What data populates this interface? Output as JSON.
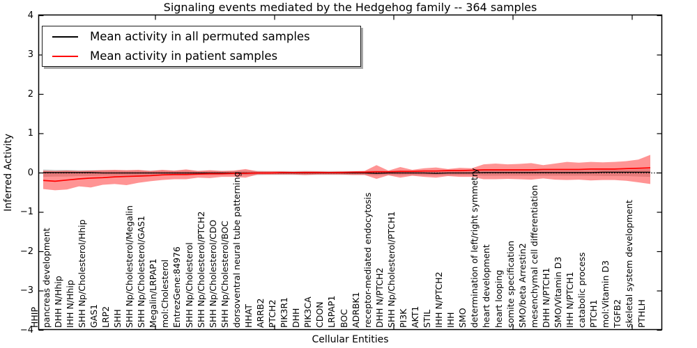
{
  "chart_data": {
    "type": "line",
    "title": "Signaling events mediated by the Hedgehog family -- 364 samples",
    "xlabel": "Cellular Entities",
    "ylabel": "Inferred Activity",
    "ylim": [
      -4,
      4
    ],
    "yticks": [
      4,
      3,
      2,
      1,
      0,
      -1,
      -2,
      -3,
      -4
    ],
    "ytick_labels": [
      "4",
      "3",
      "2",
      "1",
      "0",
      "−1",
      "−2",
      "−3",
      "−4"
    ],
    "grid": false,
    "legend_position": "upper-left",
    "zero_line": {
      "style": "dotted",
      "color": "#000000",
      "y": 0
    },
    "categories": [
      "HHIP",
      "pancreas development",
      "DHH N/Hhip",
      "IHH N/Hhip",
      "SHH Np/Cholesterol/Hhip",
      "GAS1",
      "LRP2",
      "SHH",
      "SHH Np/Cholesterol/Megalin",
      "SHH Np/Cholesterol/GAS1",
      "Megalin/LRPAP1",
      "mol:Cholesterol",
      "EntrezGene:84976",
      "SHH Np/Cholesterol",
      "SHH Np/Cholesterol/PTCH2",
      "SHH Np/Cholesterol/CDO",
      "SHH Np/Cholesterol/BOC",
      "dorsoventral neural tube patterning",
      "HHAT",
      "ARRB2",
      "PTCH2",
      "PIK3R1",
      "DHH",
      "PIK3CA",
      "CDON",
      "LRPAP1",
      "BOC",
      "ADRBK1",
      "receptor-mediated endocytosis",
      "DHH N/PTCH2",
      "SHH Np/Cholesterol/PTCH1",
      "PI3K",
      "AKT1",
      "STIL",
      "IHH N/PTCH2",
      "IHH",
      "SMO",
      "determination of left/right symmetry",
      "heart development",
      "heart looping",
      "somite specification",
      "SMO/beta Arrestin2",
      "mesenchymal cell differentiation",
      "DHH N/PTCH1",
      "SMO/Vitamin D3",
      "IHH N/PTCH1",
      "catabolic process",
      "PTCH1",
      "mol:Vitamin D3",
      "TGFB2",
      "skeletal system development",
      "PTHLH"
    ],
    "series": [
      {
        "name": "Mean activity in all permuted samples",
        "color": "#000000",
        "band_color": "rgba(0,0,0,0.17)",
        "values": [
          0.01,
          0.01,
          0.01,
          0.01,
          0.01,
          0.0,
          0.0,
          0.0,
          0.0,
          0.0,
          0.0,
          0.0,
          0.0,
          0.0,
          0.0,
          0.0,
          0.0,
          0.0,
          0.0,
          0.0,
          0.0,
          0.0,
          0.0,
          0.0,
          0.0,
          0.0,
          0.0,
          0.0,
          -0.01,
          0.0,
          0.0,
          0.0,
          0.0,
          -0.01,
          0.0,
          0.0,
          0.0,
          0.01,
          0.01,
          0.01,
          0.01,
          0.01,
          0.01,
          0.01,
          0.01,
          0.01,
          0.01,
          0.02,
          0.02,
          0.02,
          0.02,
          0.02
        ],
        "band_upper": [
          0.09,
          0.08,
          0.08,
          0.07,
          0.07,
          0.07,
          0.06,
          0.06,
          0.06,
          0.06,
          0.06,
          0.05,
          0.06,
          0.05,
          0.05,
          0.05,
          0.05,
          0.06,
          0.055,
          0.05,
          0.05,
          0.05,
          0.055,
          0.05,
          0.05,
          0.05,
          0.05,
          0.05,
          0.06,
          0.05,
          0.06,
          0.05,
          0.06,
          0.06,
          0.06,
          0.06,
          0.06,
          0.07,
          0.07,
          0.07,
          0.07,
          0.07,
          0.07,
          0.07,
          0.07,
          0.07,
          0.07,
          0.08,
          0.08,
          0.08,
          0.09,
          0.1
        ],
        "band_lower": [
          -0.1,
          -0.09,
          -0.09,
          -0.08,
          -0.08,
          -0.07,
          -0.07,
          -0.07,
          -0.06,
          -0.06,
          -0.06,
          -0.06,
          -0.06,
          -0.05,
          -0.055,
          -0.05,
          -0.05,
          -0.06,
          -0.055,
          -0.05,
          -0.05,
          -0.05,
          -0.055,
          -0.05,
          -0.05,
          -0.05,
          -0.05,
          -0.05,
          -0.06,
          -0.05,
          -0.06,
          -0.05,
          -0.06,
          -0.06,
          -0.06,
          -0.06,
          -0.06,
          -0.07,
          -0.07,
          -0.07,
          -0.07,
          -0.07,
          -0.07,
          -0.07,
          -0.07,
          -0.07,
          -0.07,
          -0.08,
          -0.08,
          -0.08,
          -0.09,
          -0.1
        ]
      },
      {
        "name": "Mean activity in patient samples",
        "color": "#ff0000",
        "band_color": "rgba(255,0,0,0.42)",
        "values": [
          -0.19,
          -0.21,
          -0.18,
          -0.15,
          -0.13,
          -0.12,
          -0.1,
          -0.09,
          -0.08,
          -0.07,
          -0.05,
          -0.04,
          -0.04,
          -0.03,
          -0.02,
          -0.02,
          -0.01,
          -0.01,
          0.0,
          0.0,
          0.01,
          0.01,
          0.01,
          0.01,
          0.01,
          0.01,
          0.02,
          0.02,
          0.03,
          0.03,
          0.04,
          0.04,
          0.05,
          0.05,
          0.06,
          0.06,
          0.07,
          0.08,
          0.08,
          0.08,
          0.08,
          0.08,
          0.09,
          0.09,
          0.09,
          0.09,
          0.1,
          0.1,
          0.1,
          0.11,
          0.12,
          0.13
        ],
        "band_upper": [
          0.06,
          0.05,
          0.06,
          0.05,
          0.06,
          0.07,
          0.08,
          0.07,
          0.08,
          0.05,
          0.08,
          0.06,
          0.09,
          0.05,
          0.07,
          0.05,
          0.06,
          0.1,
          0.04,
          0.04,
          0.04,
          0.03,
          0.04,
          0.04,
          0.03,
          0.04,
          0.04,
          0.05,
          0.2,
          0.06,
          0.15,
          0.08,
          0.12,
          0.14,
          0.1,
          0.13,
          0.12,
          0.22,
          0.24,
          0.22,
          0.23,
          0.25,
          0.2,
          0.24,
          0.28,
          0.26,
          0.28,
          0.27,
          0.28,
          0.3,
          0.34,
          0.46
        ],
        "band_lower": [
          -0.41,
          -0.44,
          -0.42,
          -0.34,
          -0.37,
          -0.3,
          -0.28,
          -0.31,
          -0.25,
          -0.21,
          -0.18,
          -0.16,
          -0.16,
          -0.12,
          -0.13,
          -0.1,
          -0.1,
          -0.12,
          -0.04,
          -0.04,
          -0.04,
          -0.04,
          -0.05,
          -0.04,
          -0.04,
          -0.04,
          -0.05,
          -0.05,
          -0.15,
          -0.06,
          -0.12,
          -0.07,
          -0.1,
          -0.12,
          -0.08,
          -0.1,
          -0.1,
          -0.16,
          -0.16,
          -0.15,
          -0.16,
          -0.17,
          -0.14,
          -0.17,
          -0.18,
          -0.17,
          -0.19,
          -0.18,
          -0.18,
          -0.2,
          -0.24,
          -0.28
        ]
      }
    ]
  }
}
